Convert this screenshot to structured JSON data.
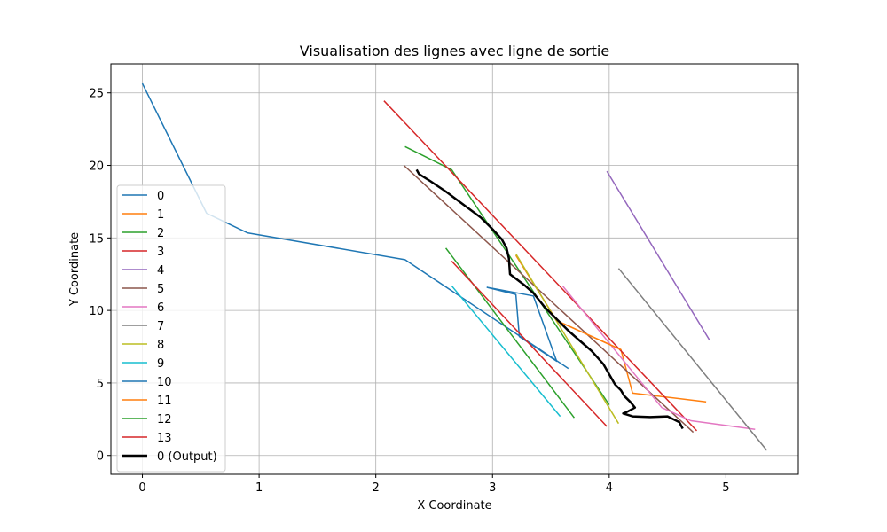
{
  "chart_data": {
    "type": "line",
    "title": "Visualisation des lignes avec ligne de sortie",
    "xlabel": "X Coordinate",
    "ylabel": "Y Coordinate",
    "xlim": [
      -0.27,
      5.62
    ],
    "ylim": [
      -1.3,
      27.0
    ],
    "xticks": [
      0,
      1,
      2,
      3,
      4,
      5
    ],
    "yticks": [
      0,
      5,
      10,
      15,
      20,
      25
    ],
    "grid": true,
    "legend_position": "center-left",
    "series": [
      {
        "name": "0",
        "color": "#1f77b4",
        "width": 1.5,
        "points": [
          [
            0.0,
            25.65
          ],
          [
            0.55,
            16.7
          ],
          [
            0.9,
            15.35
          ],
          [
            2.25,
            13.5
          ],
          [
            3.65,
            6.0
          ]
        ]
      },
      {
        "name": "1",
        "color": "#ff7f0e",
        "width": 1.5,
        "points": [
          [
            3.2,
            13.8
          ],
          [
            3.55,
            9.3
          ],
          [
            4.1,
            7.3
          ],
          [
            4.2,
            4.3
          ],
          [
            4.83,
            3.7
          ]
        ]
      },
      {
        "name": "2",
        "color": "#2ca02c",
        "width": 1.5,
        "points": [
          [
            2.25,
            21.3
          ],
          [
            2.65,
            19.7
          ],
          [
            4.0,
            3.5
          ]
        ]
      },
      {
        "name": "3",
        "color": "#d62728",
        "width": 1.5,
        "points": [
          [
            2.07,
            24.45
          ],
          [
            4.75,
            1.7
          ]
        ]
      },
      {
        "name": "4",
        "color": "#9467bd",
        "width": 1.5,
        "points": [
          [
            3.98,
            19.6
          ],
          [
            4.86,
            7.95
          ]
        ]
      },
      {
        "name": "5",
        "color": "#8c564b",
        "width": 1.5,
        "points": [
          [
            2.24,
            20.0
          ],
          [
            4.72,
            1.6
          ]
        ]
      },
      {
        "name": "6",
        "color": "#e377c2",
        "width": 1.5,
        "points": [
          [
            3.6,
            11.7
          ],
          [
            4.45,
            3.3
          ],
          [
            4.7,
            2.4
          ],
          [
            5.25,
            1.8
          ]
        ]
      },
      {
        "name": "7",
        "color": "#7f7f7f",
        "width": 1.5,
        "points": [
          [
            4.08,
            12.9
          ],
          [
            5.35,
            0.35
          ]
        ]
      },
      {
        "name": "8",
        "color": "#bcbd22",
        "width": 1.5,
        "points": [
          [
            3.2,
            13.9
          ],
          [
            4.08,
            2.2
          ]
        ]
      },
      {
        "name": "9",
        "color": "#17becf",
        "width": 1.5,
        "points": [
          [
            2.65,
            11.7
          ],
          [
            3.58,
            2.7
          ]
        ]
      },
      {
        "name": "10",
        "color": "#1f77b4",
        "width": 1.5,
        "points": [
          [
            2.95,
            11.6
          ],
          [
            3.2,
            11.1
          ],
          [
            3.23,
            8.2
          ],
          [
            3.55,
            6.5
          ],
          [
            3.35,
            11.0
          ],
          [
            2.95,
            11.6
          ]
        ]
      },
      {
        "name": "11",
        "color": "#ff7f0e",
        "width": 1.5,
        "points": [
          [
            3.55,
            9.3
          ],
          [
            4.1,
            7.3
          ]
        ]
      },
      {
        "name": "12",
        "color": "#2ca02c",
        "width": 1.5,
        "points": [
          [
            2.6,
            14.3
          ],
          [
            3.7,
            2.6
          ]
        ]
      },
      {
        "name": "13",
        "color": "#d62728",
        "width": 1.5,
        "points": [
          [
            2.65,
            13.4
          ],
          [
            3.98,
            2.0
          ]
        ]
      },
      {
        "name": "0 (Output)",
        "color": "#000000",
        "width": 2.5,
        "points": [
          [
            2.35,
            19.7
          ],
          [
            2.37,
            19.4
          ],
          [
            2.47,
            18.9
          ],
          [
            2.6,
            18.2
          ],
          [
            2.75,
            17.3
          ],
          [
            2.9,
            16.4
          ],
          [
            3.0,
            15.6
          ],
          [
            3.08,
            14.9
          ],
          [
            3.12,
            14.3
          ],
          [
            3.14,
            13.6
          ],
          [
            3.15,
            12.5
          ],
          [
            3.28,
            11.7
          ],
          [
            3.35,
            11.2
          ],
          [
            3.45,
            10.2
          ],
          [
            3.55,
            9.4
          ],
          [
            3.65,
            8.6
          ],
          [
            3.75,
            7.9
          ],
          [
            3.85,
            7.2
          ],
          [
            3.95,
            6.3
          ],
          [
            4.0,
            5.6
          ],
          [
            4.05,
            4.9
          ],
          [
            4.1,
            4.5
          ],
          [
            4.13,
            4.1
          ],
          [
            4.18,
            3.7
          ],
          [
            4.22,
            3.3
          ],
          [
            4.15,
            3.0
          ],
          [
            4.12,
            2.9
          ],
          [
            4.2,
            2.7
          ],
          [
            4.35,
            2.65
          ],
          [
            4.5,
            2.7
          ],
          [
            4.6,
            2.3
          ],
          [
            4.63,
            1.85
          ]
        ]
      }
    ]
  }
}
